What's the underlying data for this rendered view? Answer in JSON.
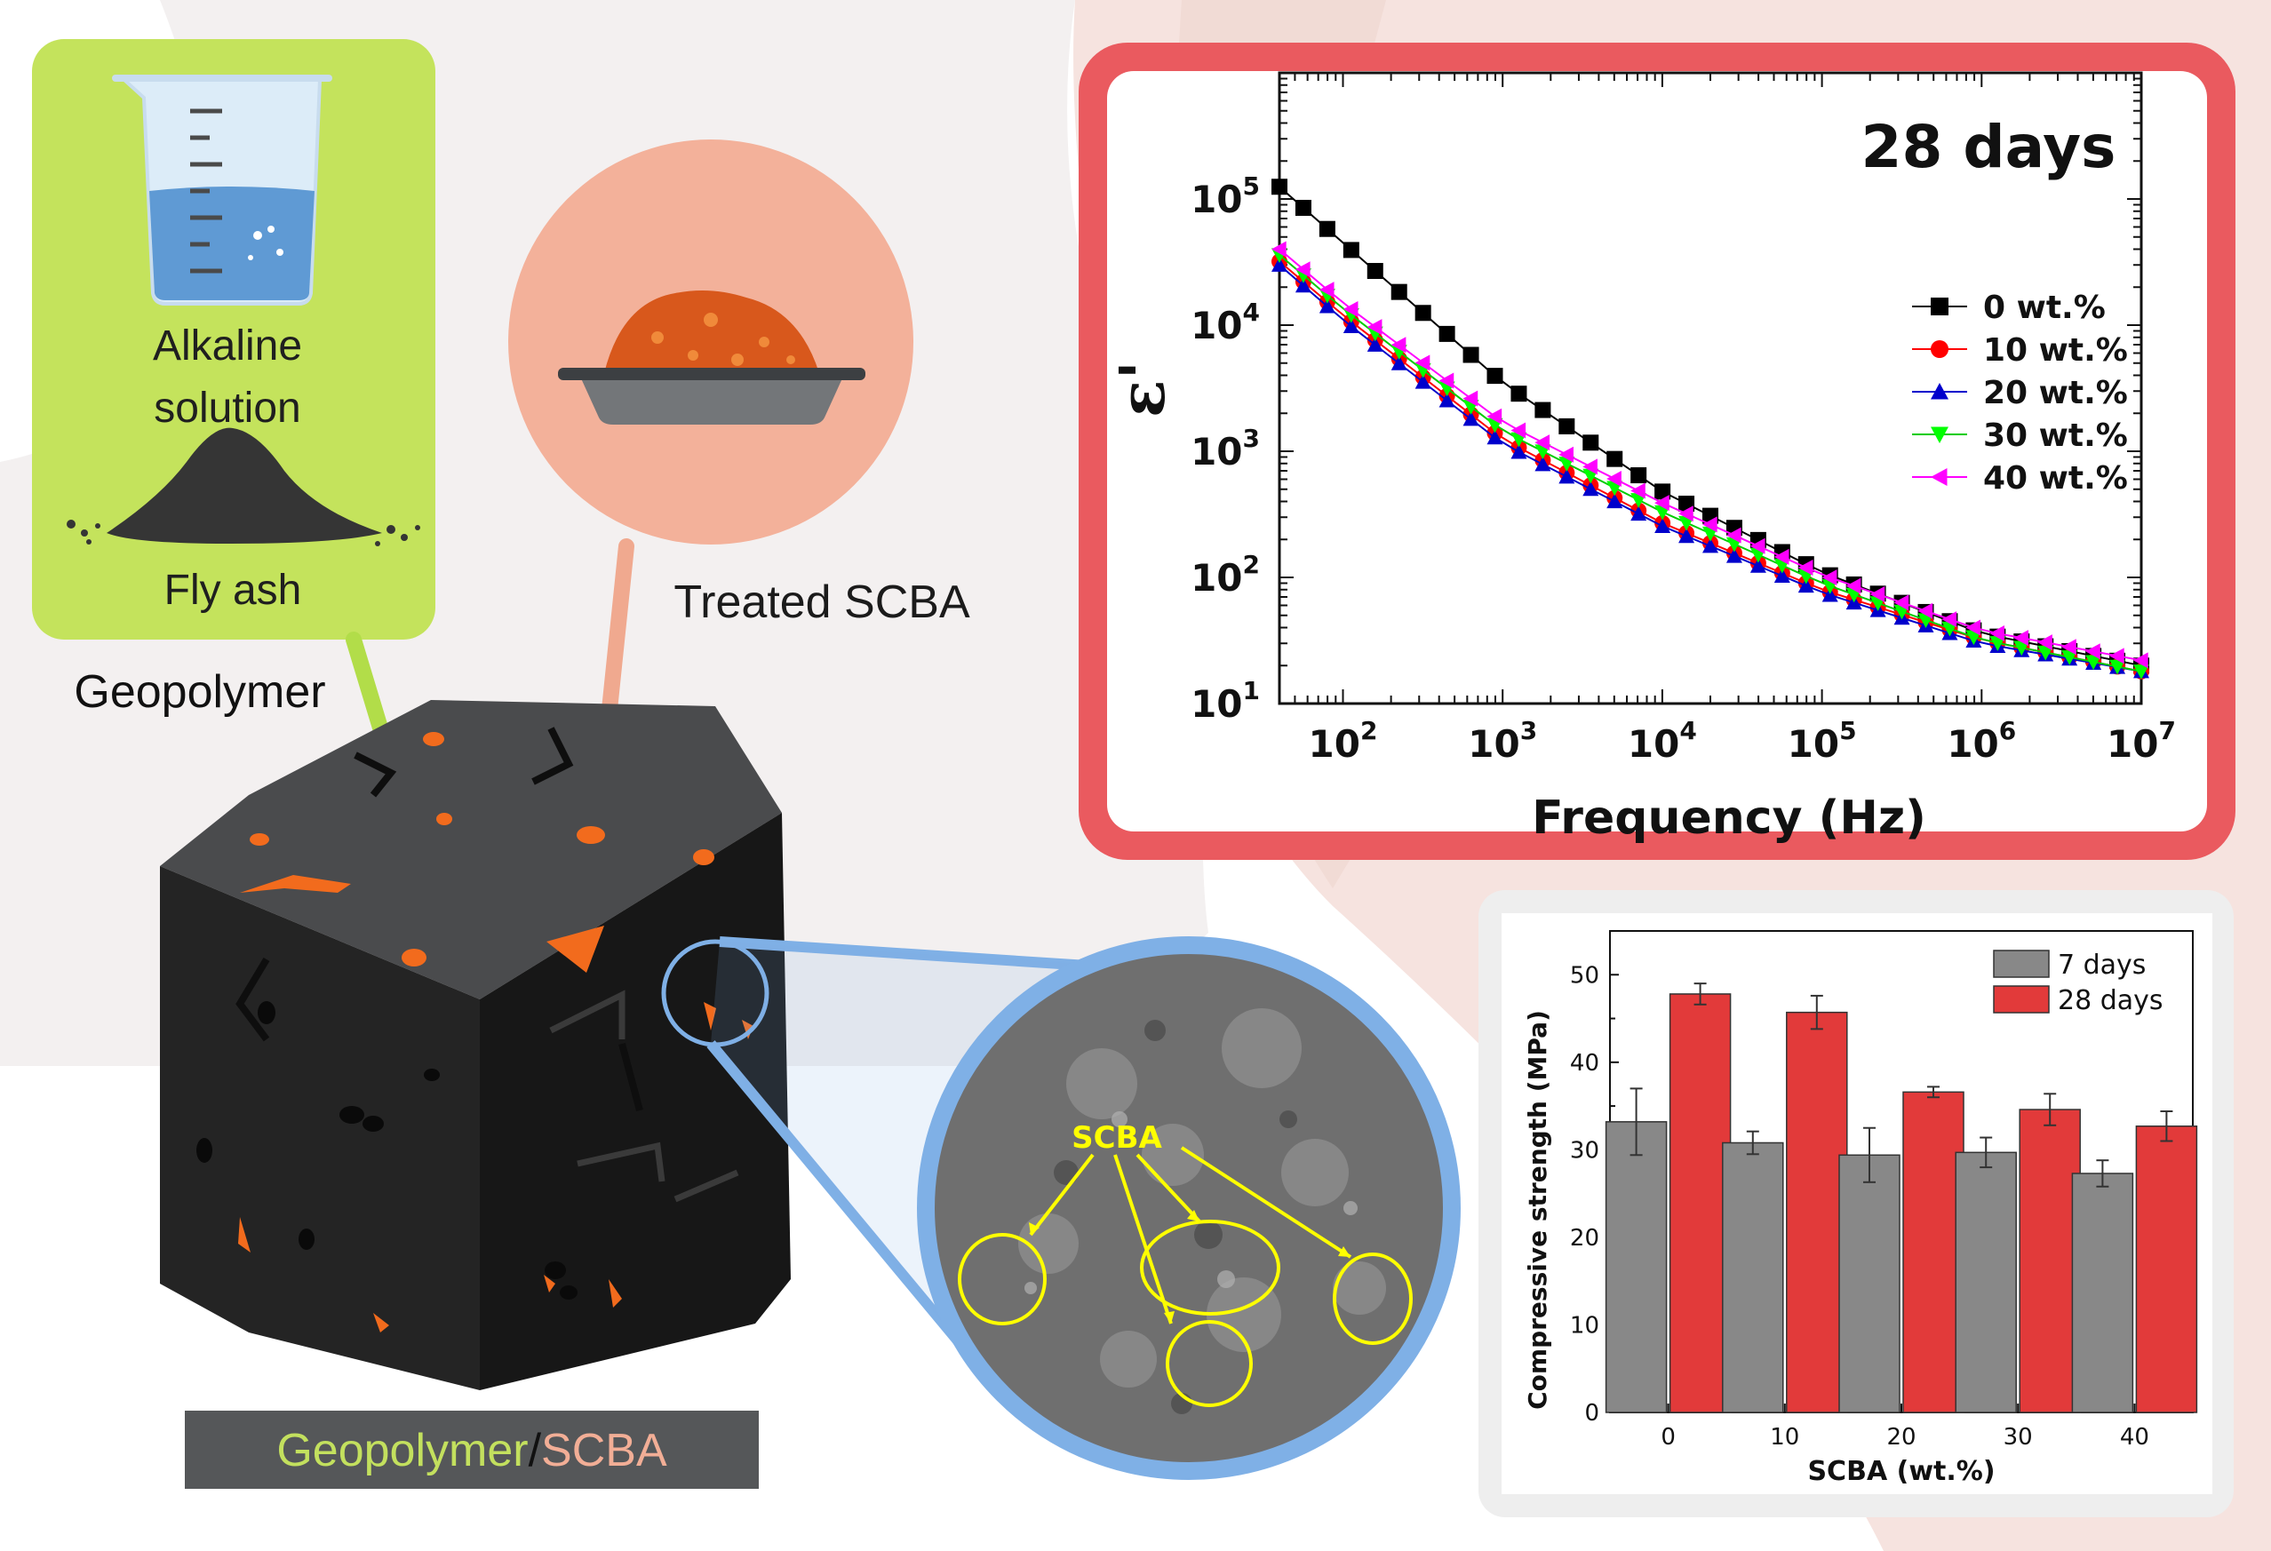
{
  "colors": {
    "bg_pink": "#f6e3df",
    "green_panel": "#c4e35c",
    "salmon": "#f3b19a",
    "dielectric_frame": "#ea5a5f",
    "sem_frame": "#7fb0e6",
    "cube_dark": "#2b2b2b",
    "orange_spot": "#f26b1d",
    "caption_bg": "#555759",
    "geopolymer_text": "#c3e05e",
    "scba_text": "#f2ae96",
    "annotation_yellow": "#ffff00",
    "bar_7days": "#888888",
    "bar_28days": "#e23a3a"
  },
  "inputs": {
    "alkaline_label_line1": "Alkaline",
    "alkaline_label_line2": "solution",
    "fly_ash_label": "Fly ash",
    "geopolymer_label": "Geopolymer",
    "treated_scba_label": "Treated SCBA"
  },
  "cube_caption": {
    "part1": "Geopolymer",
    "separator": "/",
    "part2": "SCBA"
  },
  "sem": {
    "annotation": "SCBA"
  },
  "chart_data": [
    {
      "type": "line",
      "title": "28 days",
      "xlabel": "Frequency (Hz)",
      "ylabel": "ε'",
      "xscale": "log",
      "yscale": "log",
      "xlim": [
        40,
        10000000
      ],
      "ylim": [
        10,
        1000000
      ],
      "x_ticks": [
        {
          "value": 100,
          "base": "10",
          "exp": "2"
        },
        {
          "value": 1000,
          "base": "10",
          "exp": "3"
        },
        {
          "value": 10000,
          "base": "10",
          "exp": "4"
        },
        {
          "value": 100000,
          "base": "10",
          "exp": "5"
        },
        {
          "value": 1000000,
          "base": "10",
          "exp": "6"
        },
        {
          "value": 10000000,
          "base": "10",
          "exp": "7"
        }
      ],
      "y_ticks": [
        {
          "value": 10,
          "base": "10",
          "exp": "1"
        },
        {
          "value": 100,
          "base": "10",
          "exp": "2"
        },
        {
          "value": 1000,
          "base": "10",
          "exp": "3"
        },
        {
          "value": 10000,
          "base": "10",
          "exp": "4"
        },
        {
          "value": 100000,
          "base": "10",
          "exp": "5"
        }
      ],
      "legend_position": "center-right",
      "series": [
        {
          "name": "0 wt.%",
          "marker": "square",
          "color": "#000000",
          "points": [
            [
              40,
              125000
            ],
            [
              100,
              45000
            ],
            [
              1000,
              3500
            ],
            [
              10000,
              480
            ],
            [
              100000,
              110
            ],
            [
              1000000,
              36
            ],
            [
              10000000,
              20
            ]
          ]
        },
        {
          "name": "10 wt.%",
          "marker": "circle",
          "color": "#ff0000",
          "points": [
            [
              40,
              32000
            ],
            [
              100,
              12000
            ],
            [
              1000,
              1250
            ],
            [
              10000,
              270
            ],
            [
              100000,
              80
            ],
            [
              1000000,
              32
            ],
            [
              10000000,
              18
            ]
          ]
        },
        {
          "name": "20 wt.%",
          "marker": "triangle-up",
          "color": "#0000cc",
          "points": [
            [
              40,
              30000
            ],
            [
              100,
              11000
            ],
            [
              1000,
              1150
            ],
            [
              10000,
              255
            ],
            [
              100000,
              76
            ],
            [
              1000000,
              30
            ],
            [
              10000000,
              18
            ]
          ]
        },
        {
          "name": "30 wt.%",
          "marker": "triangle-down",
          "color": "#00ff00",
          "points": [
            [
              40,
              36000
            ],
            [
              100,
              13500
            ],
            [
              1000,
              1450
            ],
            [
              10000,
              330
            ],
            [
              100000,
              90
            ],
            [
              1000000,
              32
            ],
            [
              10000000,
              18
            ]
          ]
        },
        {
          "name": "40 wt.%",
          "marker": "triangle-left",
          "color": "#ff00ff",
          "points": [
            [
              40,
              40000
            ],
            [
              100,
              15000
            ],
            [
              1000,
              1700
            ],
            [
              10000,
              390
            ],
            [
              100000,
              105
            ],
            [
              1000000,
              38
            ],
            [
              10000000,
              22
            ]
          ]
        }
      ]
    },
    {
      "type": "bar",
      "xlabel": "SCBA (wt.%)",
      "ylabel": "Compressive strength (MPa)",
      "ylim": [
        0,
        55
      ],
      "y_ticks": [
        0,
        10,
        20,
        30,
        40,
        50
      ],
      "categories": [
        "0",
        "10",
        "20",
        "30",
        "40"
      ],
      "legend_position": "top-right",
      "series": [
        {
          "name": "7 days",
          "values": [
            33.2,
            30.8,
            29.4,
            29.7,
            27.3
          ],
          "errors": [
            3.8,
            1.3,
            3.1,
            1.7,
            1.5
          ]
        },
        {
          "name": "28 days",
          "values": [
            47.8,
            45.7,
            36.6,
            34.6,
            32.7
          ],
          "errors": [
            1.2,
            1.9,
            0.6,
            1.8,
            1.7
          ]
        }
      ]
    }
  ]
}
